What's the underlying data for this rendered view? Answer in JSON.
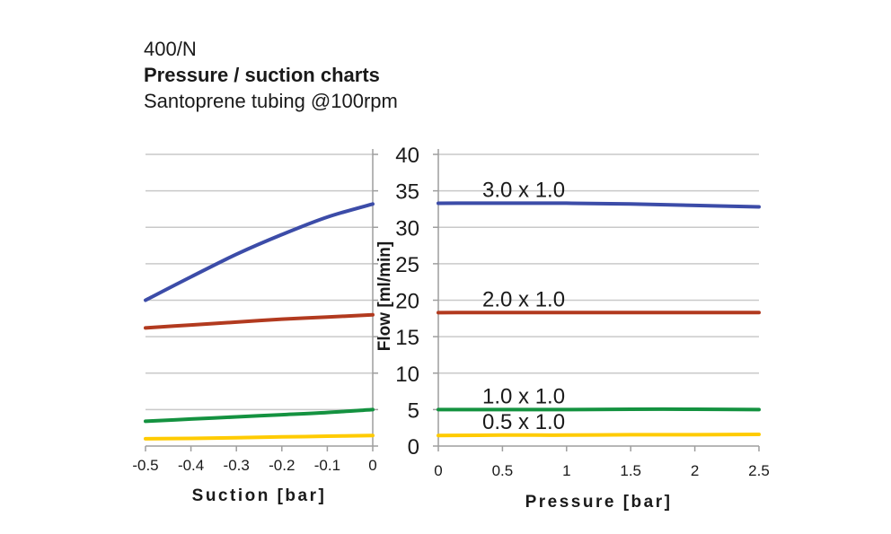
{
  "header": {
    "model": "400/N",
    "title": "Pressure / suction charts",
    "subtitle": "Santoprene tubing @100rpm"
  },
  "y_axis": {
    "label": "Flow [ml/min]",
    "ticks": [
      0,
      5,
      10,
      15,
      20,
      25,
      30,
      35,
      40
    ],
    "max": 40
  },
  "colors": {
    "grid": "#c9c9c9",
    "axis": "#9e9e9e",
    "text": "#1a1a1a",
    "blue": "#3c4ca8",
    "red": "#b23a1f",
    "green": "#149240",
    "yellow": "#ffcb00"
  },
  "chart_data": [
    {
      "type": "line",
      "name": "suction",
      "title": "",
      "xlabel": "Suction [bar]",
      "ylabel": "Flow [ml/min]",
      "ylim": [
        0,
        40
      ],
      "grid": true,
      "x": [
        -0.5,
        -0.4,
        -0.3,
        -0.2,
        -0.1,
        0
      ],
      "xtick_labels": [
        "-0.5",
        "-0.4",
        "-0.3",
        "-0.2",
        "-0.1",
        "0"
      ],
      "show_series_labels": false,
      "series": [
        {
          "name": "3.0 x 1.0",
          "color": "#3c4ca8",
          "values": [
            20.0,
            23.2,
            26.3,
            29.0,
            31.4,
            33.2
          ]
        },
        {
          "name": "2.0 x 1.0",
          "color": "#b23a1f",
          "values": [
            16.2,
            16.6,
            17.0,
            17.4,
            17.7,
            18.0
          ]
        },
        {
          "name": "1.0 x 1.0",
          "color": "#149240",
          "values": [
            3.4,
            3.7,
            4.0,
            4.3,
            4.6,
            5.0
          ]
        },
        {
          "name": "0.5 x 1.0",
          "color": "#ffcb00",
          "values": [
            1.0,
            1.05,
            1.15,
            1.25,
            1.35,
            1.45
          ]
        }
      ]
    },
    {
      "type": "line",
      "name": "pressure",
      "title": "",
      "xlabel": "Pressure [bar]",
      "ylabel": "Flow [ml/min]",
      "ylim": [
        0,
        40
      ],
      "grid": true,
      "x": [
        0,
        0.5,
        1,
        1.5,
        2,
        2.5
      ],
      "xtick_labels": [
        "0",
        "0.5",
        "1",
        "1.5",
        "2",
        "2.5"
      ],
      "show_series_labels": true,
      "series": [
        {
          "name": "3.0 x 1.0",
          "color": "#3c4ca8",
          "values": [
            33.3,
            33.3,
            33.3,
            33.2,
            33.0,
            32.8
          ]
        },
        {
          "name": "2.0 x 1.0",
          "color": "#b23a1f",
          "values": [
            18.3,
            18.3,
            18.3,
            18.3,
            18.3,
            18.3
          ]
        },
        {
          "name": "1.0 x 1.0",
          "color": "#149240",
          "values": [
            5.0,
            5.0,
            5.0,
            5.05,
            5.05,
            5.0
          ]
        },
        {
          "name": "0.5 x 1.0",
          "color": "#ffcb00",
          "values": [
            1.45,
            1.5,
            1.5,
            1.55,
            1.55,
            1.6
          ]
        }
      ]
    }
  ]
}
